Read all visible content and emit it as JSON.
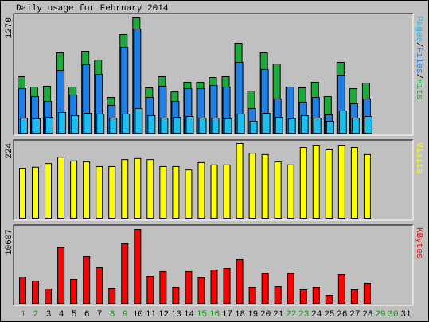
{
  "chart_data": [
    {
      "type": "bar",
      "title": "Daily usage for February 2014",
      "legend_separator": "/",
      "ylim": [
        0,
        1270
      ],
      "yticks": [
        1270
      ],
      "series": [
        {
          "name": "Pages",
          "color": "#18bff0",
          "values": [
            166,
            158,
            175,
            228,
            193,
            219,
            210,
            166,
            210,
            272,
            193,
            166,
            175,
            184,
            166,
            166,
            158,
            210,
            131,
            219,
            175,
            158,
            193,
            166,
            131,
            245,
            166,
            184,
            null,
            null,
            null
          ]
        },
        {
          "name": "Files",
          "color": "#1c80e8",
          "values": [
            490,
            403,
            350,
            692,
            420,
            753,
            648,
            307,
            946,
            1147,
            394,
            517,
            350,
            490,
            490,
            525,
            508,
            780,
            272,
            701,
            377,
            508,
            342,
            394,
            201,
            639,
            324,
            377,
            null,
            null,
            null
          ]
        },
        {
          "name": "Hits",
          "color": "#1fa83c",
          "values": [
            622,
            508,
            517,
            885,
            508,
            902,
            806,
            394,
            1086,
            1270,
            499,
            622,
            455,
            561,
            561,
            613,
            622,
            990,
            464,
            885,
            762,
            508,
            499,
            561,
            403,
            780,
            490,
            552,
            null,
            null,
            null
          ]
        }
      ]
    },
    {
      "type": "bar",
      "ylim": [
        0,
        224
      ],
      "yticks": [
        224
      ],
      "series": [
        {
          "name": "Visits",
          "color": "#ffff00",
          "values": [
            150,
            153,
            164,
            183,
            172,
            169,
            155,
            155,
            176,
            179,
            176,
            155,
            155,
            145,
            167,
            160,
            160,
            224,
            195,
            191,
            169,
            160,
            212,
            217,
            205,
            217,
            212,
            191,
            null,
            null,
            null
          ]
        }
      ]
    },
    {
      "type": "bar",
      "ylim": [
        0,
        10607
      ],
      "yticks": [
        10607
      ],
      "categories": [
        "1",
        "2",
        "3",
        "4",
        "5",
        "6",
        "7",
        "8",
        "9",
        "10",
        "11",
        "12",
        "13",
        "14",
        "15",
        "16",
        "17",
        "18",
        "19",
        "20",
        "21",
        "22",
        "23",
        "24",
        "25",
        "26",
        "27",
        "28",
        "29",
        "30",
        "31"
      ],
      "category_colors": [
        "#00a000",
        "#00a000",
        "#000000",
        "#000000",
        "#000000",
        "#000000",
        "#000000",
        "#00a000",
        "#00a000",
        "#000000",
        "#000000",
        "#000000",
        "#000000",
        "#000000",
        "#00a000",
        "#00a000",
        "#000000",
        "#000000",
        "#000000",
        "#000000",
        "#000000",
        "#00a000",
        "#00a000",
        "#000000",
        "#000000",
        "#000000",
        "#000000",
        "#000000",
        "#00a000",
        "#00a000",
        "#000000"
      ],
      "series": [
        {
          "name": "KBytes",
          "color": "#ff0000",
          "values": [
            3764,
            3193,
            2053,
            7984,
            3422,
            6729,
            5132,
            2167,
            8554,
            10607,
            3878,
            4562,
            2281,
            4562,
            3650,
            4790,
            5018,
            6273,
            2281,
            4334,
            2395,
            4334,
            1939,
            2281,
            1141,
            4106,
            1939,
            2851,
            null,
            null,
            null
          ]
        }
      ]
    }
  ]
}
